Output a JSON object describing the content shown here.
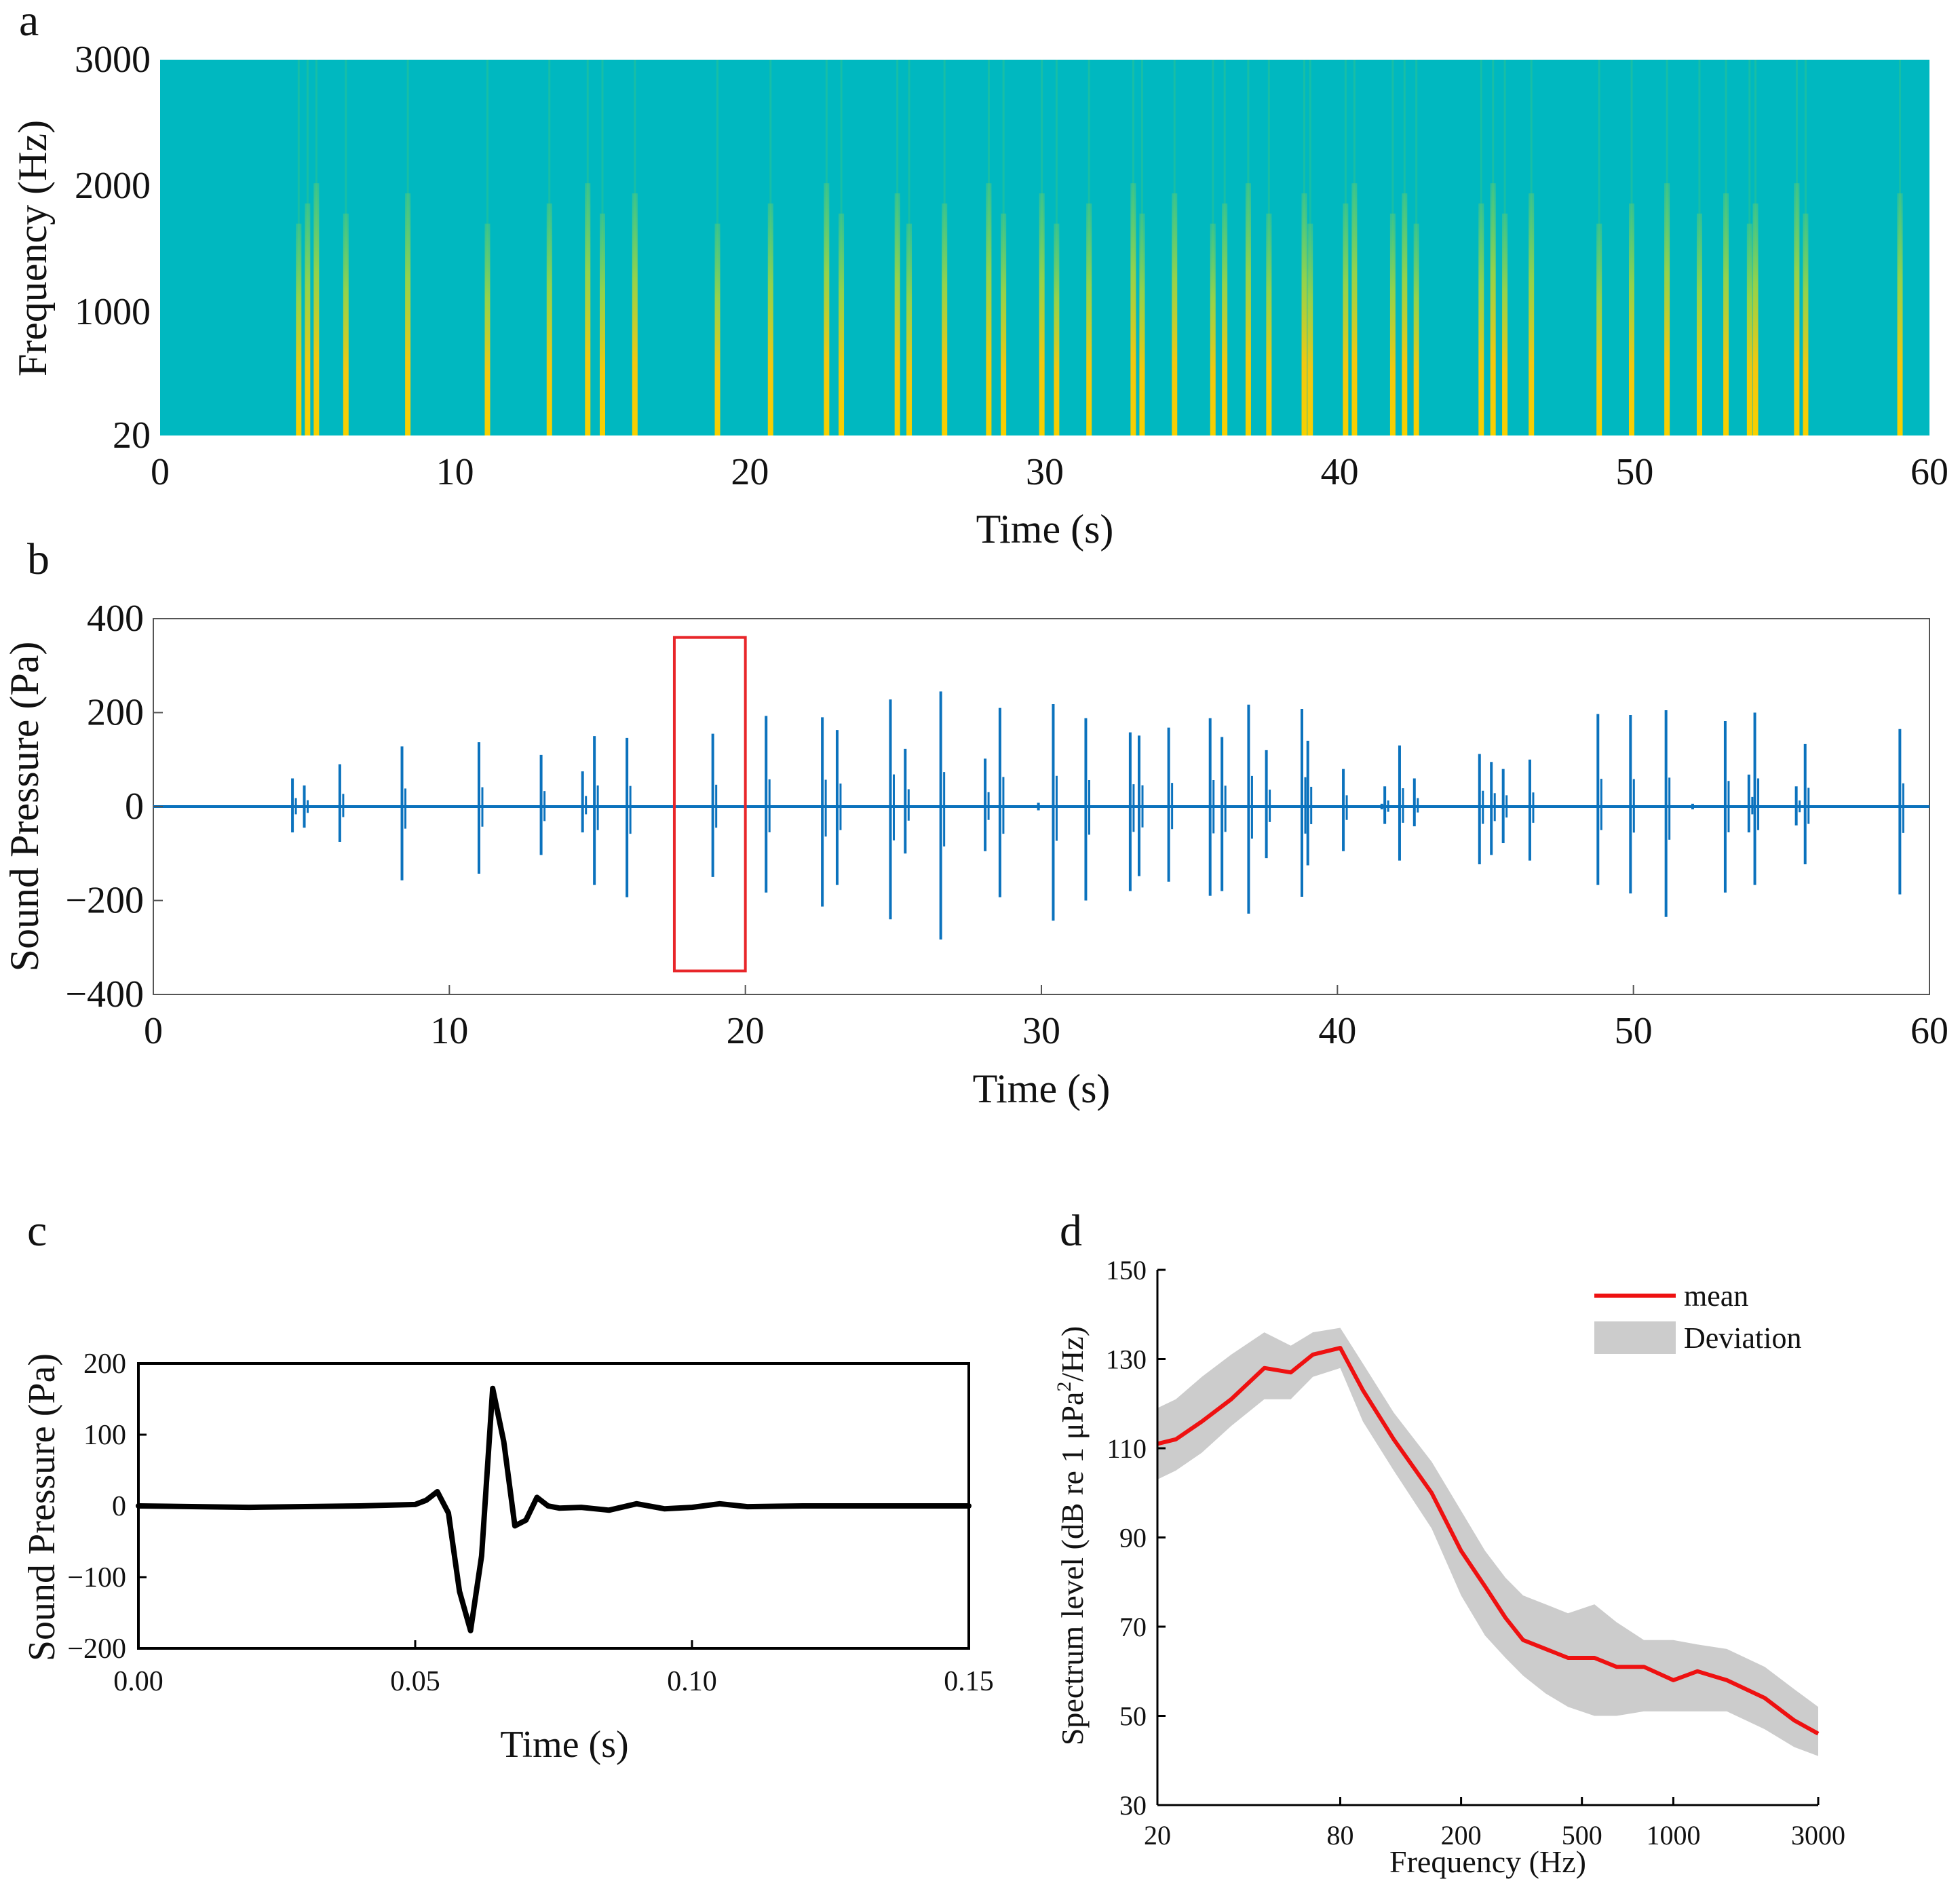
{
  "panel_labels": {
    "a": "a",
    "b": "b",
    "c": "c",
    "d": "d"
  },
  "colors": {
    "spectro_bg": "#00b8c0",
    "spectro_mid": "#2bc290",
    "spectro_hot": "#f2c80f",
    "waveform_b": "#0b72bd",
    "highlight": "#e8262a",
    "waveform_c": "#000000",
    "mean_d": "#ee1111",
    "deviation_d": "#cccccc"
  },
  "chart_data": [
    {
      "type": "heatmap",
      "panel": "a",
      "xlabel": "Time (s)",
      "ylabel": "Frequency (Hz)",
      "xlim": [
        0,
        60
      ],
      "ylim": [
        20,
        3000
      ],
      "xticks": [
        "0",
        "10",
        "20",
        "30",
        "40",
        "50",
        "60"
      ],
      "yticks": [
        "20",
        "1000",
        "2000",
        "3000"
      ],
      "click_times": [
        4.7,
        5.0,
        5.3,
        6.3,
        8.4,
        11.1,
        13.2,
        14.5,
        15.0,
        16.1,
        18.9,
        20.7,
        22.6,
        23.1,
        25.0,
        25.4,
        26.6,
        28.1,
        28.6,
        29.9,
        30.4,
        31.5,
        33.0,
        33.3,
        34.4,
        35.7,
        36.1,
        36.9,
        37.6,
        38.8,
        39.0,
        40.2,
        40.5,
        41.8,
        42.2,
        42.6,
        44.8,
        45.2,
        45.6,
        46.5,
        48.8,
        49.9,
        51.1,
        52.2,
        53.1,
        53.9,
        54.1,
        55.5,
        55.8,
        59.0
      ],
      "grid": false
    },
    {
      "type": "line",
      "panel": "b",
      "xlabel": "Time (s)",
      "ylabel": "Sound Pressure (Pa)",
      "xlim": [
        0,
        60
      ],
      "ylim": [
        -400,
        400
      ],
      "xticks": [
        "0",
        "10",
        "20",
        "30",
        "40",
        "50",
        "60"
      ],
      "yticks": [
        "400",
        "200",
        "0",
        "−200",
        "−400"
      ],
      "spikes": [
        {
          "t": 4.7,
          "pos": 60,
          "neg": -55
        },
        {
          "t": 5.1,
          "pos": 45,
          "neg": -45
        },
        {
          "t": 6.3,
          "pos": 90,
          "neg": -75
        },
        {
          "t": 8.4,
          "pos": 128,
          "neg": -157
        },
        {
          "t": 11.0,
          "pos": 137,
          "neg": -143
        },
        {
          "t": 13.1,
          "pos": 110,
          "neg": -103
        },
        {
          "t": 14.5,
          "pos": 75,
          "neg": -55
        },
        {
          "t": 14.9,
          "pos": 150,
          "neg": -167
        },
        {
          "t": 16.0,
          "pos": 146,
          "neg": -193
        },
        {
          "t": 18.9,
          "pos": 155,
          "neg": -150
        },
        {
          "t": 20.7,
          "pos": 193,
          "neg": -183
        },
        {
          "t": 22.6,
          "pos": 190,
          "neg": -213
        },
        {
          "t": 23.1,
          "pos": 163,
          "neg": -167
        },
        {
          "t": 24.9,
          "pos": 228,
          "neg": -240
        },
        {
          "t": 25.4,
          "pos": 123,
          "neg": -100
        },
        {
          "t": 26.6,
          "pos": 245,
          "neg": -283
        },
        {
          "t": 28.1,
          "pos": 102,
          "neg": -95
        },
        {
          "t": 28.6,
          "pos": 210,
          "neg": -193
        },
        {
          "t": 29.9,
          "pos": 8,
          "neg": -8
        },
        {
          "t": 30.4,
          "pos": 218,
          "neg": -243
        },
        {
          "t": 31.5,
          "pos": 188,
          "neg": -200
        },
        {
          "t": 33.0,
          "pos": 158,
          "neg": -180
        },
        {
          "t": 33.3,
          "pos": 151,
          "neg": -148
        },
        {
          "t": 34.3,
          "pos": 168,
          "neg": -160
        },
        {
          "t": 35.7,
          "pos": 188,
          "neg": -190
        },
        {
          "t": 36.1,
          "pos": 148,
          "neg": -180
        },
        {
          "t": 37.0,
          "pos": 217,
          "neg": -228
        },
        {
          "t": 37.6,
          "pos": 120,
          "neg": -110
        },
        {
          "t": 38.8,
          "pos": 208,
          "neg": -192
        },
        {
          "t": 39.0,
          "pos": 140,
          "neg": -125
        },
        {
          "t": 40.2,
          "pos": 80,
          "neg": -95
        },
        {
          "t": 41.5,
          "pos": 6,
          "neg": -6
        },
        {
          "t": 41.6,
          "pos": 43,
          "neg": -37
        },
        {
          "t": 42.1,
          "pos": 130,
          "neg": -115
        },
        {
          "t": 42.6,
          "pos": 60,
          "neg": -42
        },
        {
          "t": 44.8,
          "pos": 112,
          "neg": -123
        },
        {
          "t": 45.2,
          "pos": 95,
          "neg": -103
        },
        {
          "t": 45.6,
          "pos": 80,
          "neg": -78
        },
        {
          "t": 46.5,
          "pos": 100,
          "neg": -115
        },
        {
          "t": 48.8,
          "pos": 197,
          "neg": -167
        },
        {
          "t": 49.9,
          "pos": 195,
          "neg": -185
        },
        {
          "t": 51.1,
          "pos": 205,
          "neg": -235
        },
        {
          "t": 52.0,
          "pos": 6,
          "neg": -6
        },
        {
          "t": 53.1,
          "pos": 182,
          "neg": -183
        },
        {
          "t": 53.9,
          "pos": 68,
          "neg": -55
        },
        {
          "t": 54.1,
          "pos": 200,
          "neg": -167
        },
        {
          "t": 55.5,
          "pos": 43,
          "neg": -40
        },
        {
          "t": 55.8,
          "pos": 133,
          "neg": -123
        },
        {
          "t": 59.0,
          "pos": 165,
          "neg": -187
        }
      ],
      "highlight_box": {
        "x0": 17.6,
        "x1": 20.0,
        "y0": -350,
        "y1": 360
      },
      "grid": false
    },
    {
      "type": "line",
      "panel": "c",
      "xlabel": "Time (s)",
      "ylabel": "Sound Pressure (Pa)",
      "xlim": [
        0.0,
        0.15
      ],
      "ylim": [
        -200,
        200
      ],
      "xticks": [
        "0.00",
        "0.05",
        "0.10",
        "0.15"
      ],
      "yticks": [
        "200",
        "100",
        "0",
        "−100",
        "−200"
      ],
      "x": [
        0.0,
        0.02,
        0.04,
        0.05,
        0.052,
        0.054,
        0.056,
        0.058,
        0.06,
        0.062,
        0.064,
        0.066,
        0.068,
        0.07,
        0.072,
        0.074,
        0.076,
        0.08,
        0.085,
        0.09,
        0.095,
        0.1,
        0.105,
        0.11,
        0.12,
        0.15
      ],
      "y": [
        0,
        -2,
        0,
        2,
        8,
        20,
        -10,
        -120,
        -175,
        -70,
        165,
        90,
        -28,
        -20,
        12,
        0,
        -3,
        -2,
        -6,
        3,
        -4,
        -2,
        3,
        -1,
        0,
        0
      ],
      "grid": false
    },
    {
      "type": "area",
      "panel": "d",
      "xlabel": "Frequency (Hz)",
      "ylabel_parts": [
        "Spectrum level (dB re 1 μPa",
        "2",
        "/Hz)"
      ],
      "xscale": "log",
      "xlim": [
        20,
        3000
      ],
      "ylim": [
        30,
        150
      ],
      "xticks": [
        "20",
        "80",
        "200",
        "500",
        "1000",
        "3000"
      ],
      "yticks": [
        "30",
        "50",
        "70",
        "90",
        "110",
        "130",
        "150"
      ],
      "legend": {
        "position": "top-right",
        "mean": "mean",
        "deviation": "Deviation"
      },
      "x": [
        20,
        23,
        28,
        35,
        45,
        55,
        65,
        80,
        95,
        120,
        160,
        200,
        240,
        280,
        320,
        380,
        450,
        550,
        650,
        800,
        1000,
        1200,
        1500,
        2000,
        2500,
        3000
      ],
      "mean": [
        111,
        112,
        116,
        121,
        128,
        127,
        131,
        132.5,
        123,
        112,
        100,
        87,
        79,
        72,
        67,
        65,
        63,
        63,
        61,
        61,
        58,
        60,
        58,
        54,
        49,
        46
      ],
      "upper": [
        119,
        121,
        126,
        131,
        136,
        133,
        136,
        137,
        129,
        118,
        107,
        96,
        87,
        81,
        77,
        75,
        73,
        75,
        71,
        67,
        67,
        66,
        65,
        61,
        56,
        52
      ],
      "lower": [
        103,
        105,
        109,
        115,
        121,
        121,
        126,
        128,
        116,
        105,
        92,
        77,
        68,
        63,
        59,
        55,
        52,
        50,
        50,
        51,
        51,
        51,
        51,
        47,
        43,
        41
      ],
      "grid": false
    }
  ]
}
